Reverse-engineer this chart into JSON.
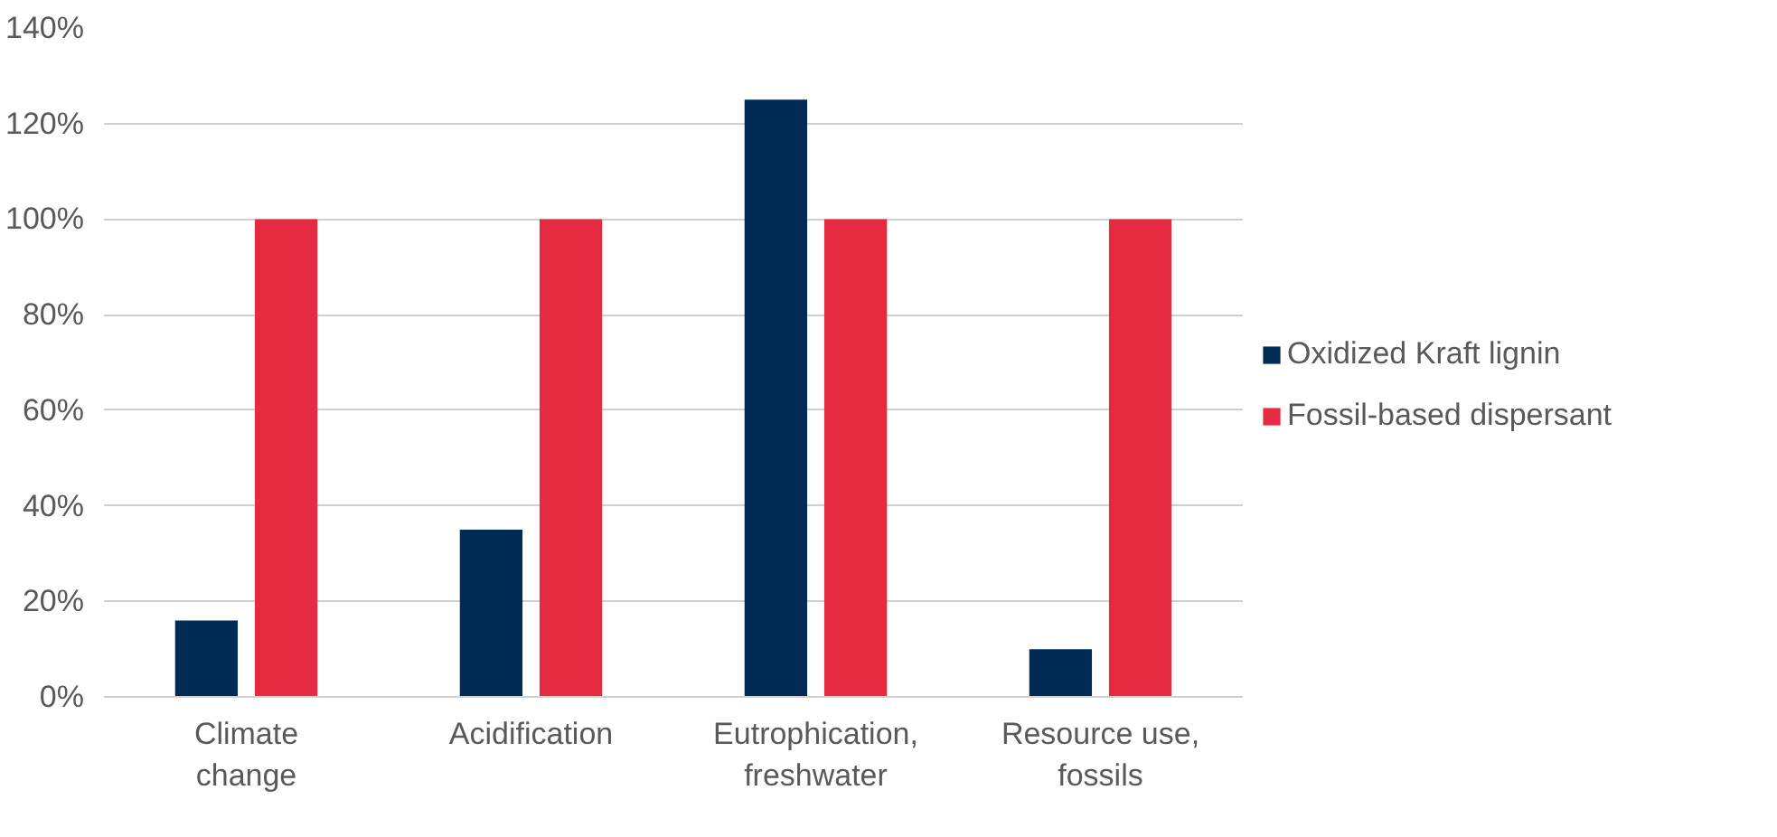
{
  "chart_data": {
    "type": "bar",
    "categories": [
      "Climate change",
      "Acidification",
      "Eutrophication, freshwater",
      "Resource use, fossils"
    ],
    "series": [
      {
        "name": "Oxidized Kraft lignin",
        "color": "#002b54",
        "values": [
          16,
          35,
          125,
          10
        ]
      },
      {
        "name": "Fossil-based dispersant",
        "color": "#e52a42",
        "values": [
          100,
          100,
          100,
          100
        ]
      }
    ],
    "ylim": [
      0,
      140
    ],
    "yticks": [
      {
        "value": 0,
        "label": "0%"
      },
      {
        "value": 20,
        "label": "20%"
      },
      {
        "value": 40,
        "label": "40%"
      },
      {
        "value": 60,
        "label": "60%"
      },
      {
        "value": 80,
        "label": "80%"
      },
      {
        "value": 100,
        "label": "100%"
      },
      {
        "value": 120,
        "label": "120%"
      },
      {
        "value": 140,
        "label": "140%"
      }
    ],
    "grid": "y",
    "legend": "right"
  }
}
